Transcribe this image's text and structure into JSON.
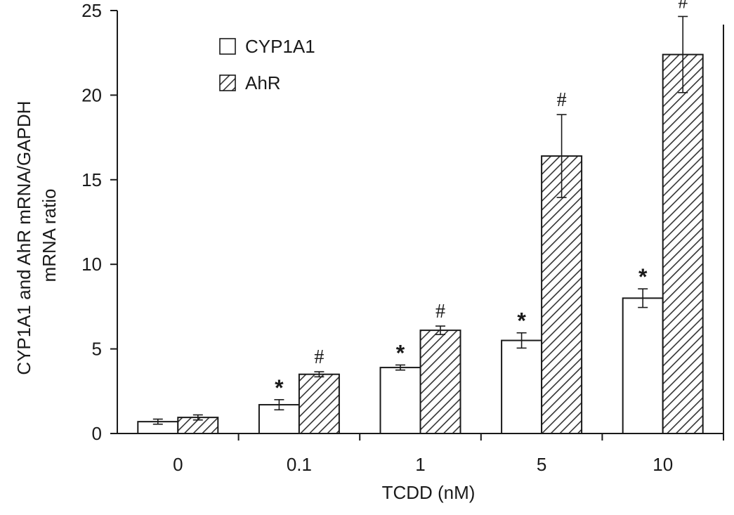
{
  "chart_data": {
    "type": "bar",
    "xlabel": "TCDD (nM)",
    "ylabel_lines": [
      "CYP1A1 and AhR mRNA/GAPDH",
      "mRNA ratio"
    ],
    "categories": [
      "0",
      "0.1",
      "1",
      "5",
      "10"
    ],
    "ylim": [
      0,
      25
    ],
    "yticks": [
      0,
      5,
      10,
      15,
      20,
      25
    ],
    "grid": false,
    "legend_position": "top-left",
    "series": [
      {
        "name": "CYP1A1",
        "fill": "white",
        "values": [
          0.7,
          1.7,
          3.9,
          5.5,
          8.0
        ],
        "errors": [
          0.15,
          0.3,
          0.15,
          0.45,
          0.55
        ],
        "marks": [
          "",
          "*",
          "*",
          "*",
          "*"
        ]
      },
      {
        "name": "AhR",
        "fill": "hatched",
        "values": [
          0.95,
          3.5,
          6.1,
          16.4,
          22.4
        ],
        "errors": [
          0.15,
          0.15,
          0.25,
          2.45,
          2.25
        ],
        "marks": [
          "",
          "#",
          "#",
          "#",
          "#"
        ]
      }
    ]
  },
  "colors": {
    "ink": "#1a1a1a",
    "background": "#ffffff"
  }
}
